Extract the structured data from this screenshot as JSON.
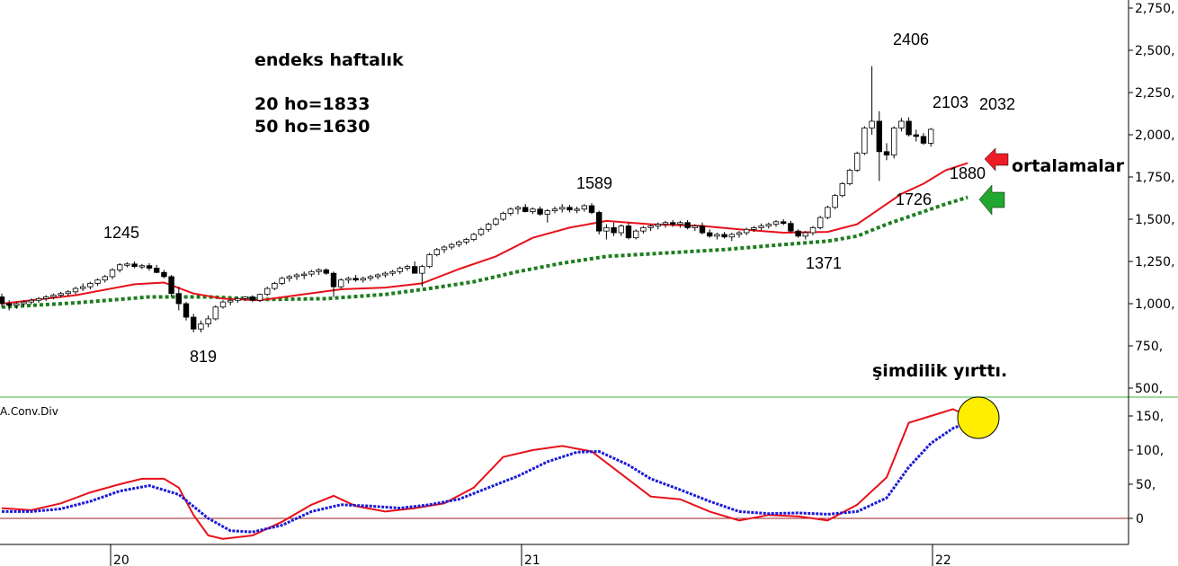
{
  "annotations": {
    "title": "endeks haftalık",
    "ma20": "20 ho=1833",
    "ma50": "50 ho=1630",
    "averages_label": "ortalamalar",
    "torn_label": "şimdilik yırttı.",
    "indicator_label": "A.Conv.Div"
  },
  "price_labels": {
    "p1245": "1245",
    "p819": "819",
    "p1589": "1589",
    "p1371": "1371",
    "p2406": "2406",
    "p2103": "2103",
    "p2032": "2032",
    "p1880": "1880",
    "p1726": "1726"
  },
  "x_ticks": [
    "20",
    "21",
    "22"
  ],
  "colors": {
    "ma_short": "#e8101a",
    "ma_long": "#1e7e1e",
    "macd_line": "#e8101a",
    "signal_line": "#1a1ad8",
    "zero_line": "#9b2020",
    "separator": "#7fcf7f",
    "highlight": "#ffee00",
    "arrow_red": "#ee1c24",
    "arrow_green": "#22a830"
  },
  "chart_data": [
    {
      "type": "candlestick",
      "yticks": [
        500,
        750,
        1000,
        1250,
        1500,
        1750,
        2000,
        2250,
        2500,
        2750
      ],
      "ylim": [
        430,
        2810
      ],
      "x_tick_labels": [
        "20",
        "21",
        "22"
      ],
      "candles": [
        [
          1040,
          1060,
          980,
          1000
        ],
        [
          1000,
          1020,
          960,
          990
        ],
        [
          990,
          1010,
          970,
          1000
        ],
        [
          1000,
          1020,
          985,
          1010
        ],
        [
          1010,
          1030,
          995,
          1020
        ],
        [
          1020,
          1040,
          1005,
          1030
        ],
        [
          1030,
          1050,
          1015,
          1040
        ],
        [
          1040,
          1060,
          1025,
          1050
        ],
        [
          1050,
          1070,
          1035,
          1060
        ],
        [
          1060,
          1080,
          1045,
          1070
        ],
        [
          1070,
          1100,
          1055,
          1090
        ],
        [
          1090,
          1120,
          1075,
          1100
        ],
        [
          1100,
          1130,
          1085,
          1120
        ],
        [
          1120,
          1150,
          1105,
          1140
        ],
        [
          1140,
          1170,
          1125,
          1160
        ],
        [
          1160,
          1210,
          1145,
          1200
        ],
        [
          1200,
          1240,
          1185,
          1230
        ],
        [
          1230,
          1245,
          1215,
          1235
        ],
        [
          1235,
          1250,
          1210,
          1220
        ],
        [
          1220,
          1235,
          1205,
          1225
        ],
        [
          1225,
          1240,
          1195,
          1210
        ],
        [
          1210,
          1230,
          1180,
          1185
        ],
        [
          1185,
          1200,
          1150,
          1160
        ],
        [
          1160,
          1170,
          1040,
          1060
        ],
        [
          1060,
          1100,
          960,
          1000
        ],
        [
          1000,
          1010,
          900,
          920
        ],
        [
          920,
          940,
          830,
          850
        ],
        [
          850,
          900,
          830,
          880
        ],
        [
          880,
          930,
          860,
          910
        ],
        [
          910,
          990,
          900,
          980
        ],
        [
          980,
          1020,
          970,
          1010
        ],
        [
          1010,
          1030,
          990,
          1020
        ],
        [
          1020,
          1040,
          1005,
          1030
        ],
        [
          1030,
          1045,
          1015,
          1040
        ],
        [
          1040,
          1050,
          1010,
          1020
        ],
        [
          1020,
          1060,
          1010,
          1055
        ],
        [
          1055,
          1100,
          1045,
          1090
        ],
        [
          1090,
          1130,
          1080,
          1120
        ],
        [
          1120,
          1160,
          1110,
          1150
        ],
        [
          1150,
          1170,
          1130,
          1160
        ],
        [
          1160,
          1180,
          1140,
          1170
        ],
        [
          1170,
          1190,
          1145,
          1175
        ],
        [
          1175,
          1200,
          1160,
          1190
        ],
        [
          1190,
          1210,
          1170,
          1200
        ],
        [
          1200,
          1210,
          1170,
          1180
        ],
        [
          1180,
          1190,
          1040,
          1100
        ],
        [
          1100,
          1150,
          1090,
          1140
        ],
        [
          1140,
          1160,
          1120,
          1150
        ],
        [
          1150,
          1170,
          1130,
          1140
        ],
        [
          1140,
          1160,
          1125,
          1150
        ],
        [
          1150,
          1170,
          1135,
          1160
        ],
        [
          1160,
          1180,
          1145,
          1170
        ],
        [
          1170,
          1190,
          1155,
          1180
        ],
        [
          1180,
          1200,
          1165,
          1190
        ],
        [
          1190,
          1220,
          1175,
          1210
        ],
        [
          1210,
          1230,
          1195,
          1220
        ],
        [
          1220,
          1250,
          1200,
          1180
        ],
        [
          1180,
          1230,
          1100,
          1220
        ],
        [
          1220,
          1300,
          1210,
          1290
        ],
        [
          1290,
          1330,
          1280,
          1320
        ],
        [
          1320,
          1345,
          1300,
          1335
        ],
        [
          1335,
          1360,
          1320,
          1350
        ],
        [
          1350,
          1375,
          1335,
          1365
        ],
        [
          1365,
          1390,
          1350,
          1380
        ],
        [
          1380,
          1420,
          1370,
          1410
        ],
        [
          1410,
          1450,
          1400,
          1440
        ],
        [
          1440,
          1480,
          1425,
          1470
        ],
        [
          1470,
          1510,
          1460,
          1500
        ],
        [
          1500,
          1545,
          1490,
          1535
        ],
        [
          1535,
          1570,
          1520,
          1560
        ],
        [
          1560,
          1580,
          1530,
          1570
        ],
        [
          1570,
          1590,
          1540,
          1545
        ],
        [
          1545,
          1570,
          1530,
          1560
        ],
        [
          1560,
          1575,
          1520,
          1530
        ],
        [
          1530,
          1560,
          1480,
          1550
        ],
        [
          1550,
          1575,
          1535,
          1560
        ],
        [
          1560,
          1590,
          1540,
          1570
        ],
        [
          1570,
          1585,
          1540,
          1555
        ],
        [
          1555,
          1575,
          1535,
          1560
        ],
        [
          1560,
          1589,
          1545,
          1580
        ],
        [
          1580,
          1595,
          1530,
          1540
        ],
        [
          1540,
          1550,
          1410,
          1430
        ],
        [
          1430,
          1470,
          1380,
          1450
        ],
        [
          1450,
          1480,
          1400,
          1420
        ],
        [
          1420,
          1470,
          1400,
          1460
        ],
        [
          1460,
          1480,
          1380,
          1390
        ],
        [
          1390,
          1440,
          1380,
          1430
        ],
        [
          1430,
          1460,
          1415,
          1450
        ],
        [
          1450,
          1470,
          1430,
          1460
        ],
        [
          1460,
          1480,
          1440,
          1470
        ],
        [
          1470,
          1490,
          1450,
          1480
        ],
        [
          1480,
          1495,
          1455,
          1470
        ],
        [
          1470,
          1490,
          1450,
          1480
        ],
        [
          1480,
          1495,
          1440,
          1450
        ],
        [
          1450,
          1470,
          1430,
          1460
        ],
        [
          1460,
          1480,
          1410,
          1420
        ],
        [
          1420,
          1440,
          1390,
          1400
        ],
        [
          1400,
          1420,
          1380,
          1410
        ],
        [
          1410,
          1425,
          1385,
          1395
        ],
        [
          1395,
          1420,
          1371,
          1410
        ],
        [
          1410,
          1430,
          1390,
          1420
        ],
        [
          1420,
          1450,
          1405,
          1440
        ],
        [
          1440,
          1460,
          1425,
          1450
        ],
        [
          1450,
          1475,
          1435,
          1460
        ],
        [
          1460,
          1480,
          1445,
          1470
        ],
        [
          1470,
          1495,
          1455,
          1485
        ],
        [
          1485,
          1500,
          1465,
          1475
        ],
        [
          1475,
          1490,
          1420,
          1430
        ],
        [
          1430,
          1440,
          1390,
          1400
        ],
        [
          1400,
          1430,
          1380,
          1420
        ],
        [
          1420,
          1460,
          1405,
          1450
        ],
        [
          1450,
          1520,
          1440,
          1510
        ],
        [
          1510,
          1580,
          1500,
          1570
        ],
        [
          1570,
          1650,
          1560,
          1640
        ],
        [
          1640,
          1720,
          1630,
          1710
        ],
        [
          1710,
          1800,
          1700,
          1790
        ],
        [
          1790,
          1900,
          1780,
          1890
        ],
        [
          1890,
          2050,
          1880,
          2040
        ],
        [
          2040,
          2406,
          2000,
          2080
        ],
        [
          2080,
          2140,
          1726,
          1900
        ],
        [
          1900,
          1950,
          1850,
          1880
        ],
        [
          1880,
          2050,
          1860,
          2040
        ],
        [
          2040,
          2100,
          2020,
          2080
        ],
        [
          2080,
          2103,
          1990,
          2000
        ],
        [
          2000,
          2030,
          1960,
          1990
        ],
        [
          1990,
          2010,
          1940,
          1950
        ],
        [
          1950,
          2040,
          1930,
          2032
        ]
      ],
      "ma20": [
        [
          0,
          1000
        ],
        [
          10,
          1050
        ],
        [
          18,
          1115
        ],
        [
          22,
          1125
        ],
        [
          26,
          1060
        ],
        [
          30,
          1030
        ],
        [
          35,
          1020
        ],
        [
          40,
          1050
        ],
        [
          46,
          1085
        ],
        [
          52,
          1095
        ],
        [
          57,
          1120
        ],
        [
          62,
          1205
        ],
        [
          67,
          1280
        ],
        [
          72,
          1390
        ],
        [
          77,
          1450
        ],
        [
          82,
          1490
        ],
        [
          88,
          1470
        ],
        [
          95,
          1460
        ],
        [
          100,
          1440
        ],
        [
          106,
          1420
        ],
        [
          112,
          1425
        ],
        [
          116,
          1470
        ],
        [
          119,
          1560
        ],
        [
          122,
          1650
        ],
        [
          125,
          1710
        ],
        [
          128,
          1790
        ],
        [
          131,
          1833
        ]
      ],
      "ma50": [
        [
          0,
          980
        ],
        [
          10,
          1005
        ],
        [
          20,
          1040
        ],
        [
          28,
          1040
        ],
        [
          36,
          1025
        ],
        [
          44,
          1030
        ],
        [
          52,
          1055
        ],
        [
          58,
          1090
        ],
        [
          64,
          1130
        ],
        [
          70,
          1190
        ],
        [
          76,
          1240
        ],
        [
          82,
          1280
        ],
        [
          90,
          1300
        ],
        [
          98,
          1320
        ],
        [
          106,
          1350
        ],
        [
          112,
          1370
        ],
        [
          116,
          1400
        ],
        [
          120,
          1470
        ],
        [
          124,
          1530
        ],
        [
          128,
          1590
        ],
        [
          131,
          1630
        ]
      ]
    },
    {
      "type": "line",
      "title": "A.Conv.Div",
      "yticks": [
        0,
        50,
        100,
        150
      ],
      "series": [
        {
          "values": [
            [
              0,
              15
            ],
            [
              4,
              12
            ],
            [
              8,
              22
            ],
            [
              12,
              38
            ],
            [
              16,
              50
            ],
            [
              19,
              58
            ],
            [
              22,
              58
            ],
            [
              24,
              45
            ],
            [
              26,
              5
            ],
            [
              28,
              -25
            ],
            [
              30,
              -30
            ],
            [
              34,
              -25
            ],
            [
              38,
              -5
            ],
            [
              42,
              20
            ],
            [
              45,
              33
            ],
            [
              48,
              18
            ],
            [
              52,
              10
            ],
            [
              56,
              15
            ],
            [
              60,
              22
            ],
            [
              64,
              45
            ],
            [
              68,
              90
            ],
            [
              72,
              100
            ],
            [
              76,
              106
            ],
            [
              80,
              98
            ],
            [
              84,
              65
            ],
            [
              88,
              32
            ],
            [
              92,
              28
            ],
            [
              96,
              10
            ],
            [
              100,
              -3
            ],
            [
              104,
              5
            ],
            [
              108,
              3
            ],
            [
              112,
              -3
            ],
            [
              116,
              20
            ],
            [
              120,
              60
            ],
            [
              123,
              140
            ],
            [
              126,
              150
            ],
            [
              129,
              160
            ],
            [
              131,
              150
            ]
          ]
        },
        {
          "values": [
            [
              0,
              10
            ],
            [
              4,
              10
            ],
            [
              8,
              14
            ],
            [
              12,
              25
            ],
            [
              16,
              40
            ],
            [
              20,
              48
            ],
            [
              24,
              35
            ],
            [
              28,
              0
            ],
            [
              31,
              -18
            ],
            [
              34,
              -20
            ],
            [
              38,
              -10
            ],
            [
              42,
              10
            ],
            [
              46,
              20
            ],
            [
              50,
              18
            ],
            [
              54,
              15
            ],
            [
              58,
              20
            ],
            [
              62,
              28
            ],
            [
              66,
              45
            ],
            [
              70,
              62
            ],
            [
              74,
              83
            ],
            [
              78,
              97
            ],
            [
              81,
              98
            ],
            [
              85,
              78
            ],
            [
              88,
              58
            ],
            [
              92,
              42
            ],
            [
              96,
              25
            ],
            [
              100,
              10
            ],
            [
              104,
              7
            ],
            [
              108,
              8
            ],
            [
              112,
              6
            ],
            [
              116,
              10
            ],
            [
              120,
              30
            ],
            [
              123,
              75
            ],
            [
              126,
              110
            ],
            [
              129,
              132
            ],
            [
              131,
              140
            ]
          ]
        }
      ]
    }
  ]
}
